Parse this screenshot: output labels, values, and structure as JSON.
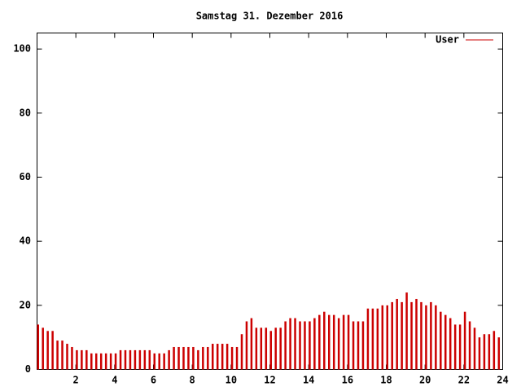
{
  "chart_data": {
    "type": "impulse",
    "title": "Samstag 31. Dezember 2016",
    "series": [
      {
        "name": "User",
        "color": "#cc0000",
        "values": [
          14,
          13,
          12,
          12,
          9,
          9,
          8,
          7,
          6,
          6,
          6,
          5,
          5,
          5,
          5,
          5,
          5,
          6,
          6,
          6,
          6,
          6,
          6,
          6,
          5,
          5,
          5,
          6,
          7,
          7,
          7,
          7,
          7,
          6,
          7,
          7,
          8,
          8,
          8,
          8,
          7,
          7,
          11,
          15,
          16,
          13,
          13,
          13,
          12,
          13,
          13,
          15,
          16,
          16,
          15,
          15,
          15,
          16,
          17,
          18,
          17,
          17,
          16,
          17,
          17,
          15,
          15,
          15,
          19,
          19,
          19,
          20,
          20,
          21,
          22,
          21,
          24,
          21,
          22,
          21,
          20,
          21,
          20,
          18,
          17,
          16,
          14,
          14,
          18,
          15,
          13,
          10,
          11,
          11,
          12,
          10
        ]
      }
    ],
    "x": [
      0,
      0.25,
      0.5,
      0.75,
      1,
      1.25,
      1.5,
      1.75,
      2,
      2.25,
      2.5,
      2.75,
      3,
      3.25,
      3.5,
      3.75,
      4,
      4.25,
      4.5,
      4.75,
      5,
      5.25,
      5.5,
      5.75,
      6,
      6.25,
      6.5,
      6.75,
      7,
      7.25,
      7.5,
      7.75,
      8,
      8.25,
      8.5,
      8.75,
      9,
      9.25,
      9.5,
      9.75,
      10,
      10.25,
      10.5,
      10.75,
      11,
      11.25,
      11.5,
      11.75,
      12,
      12.25,
      12.5,
      12.75,
      13,
      13.25,
      13.5,
      13.75,
      14,
      14.25,
      14.5,
      14.75,
      15,
      15.25,
      15.5,
      15.75,
      16,
      16.25,
      16.5,
      16.75,
      17,
      17.25,
      17.5,
      17.75,
      18,
      18.25,
      18.5,
      18.75,
      19,
      19.25,
      19.5,
      19.75,
      20,
      20.25,
      20.5,
      20.75,
      21,
      21.25,
      21.5,
      21.75,
      22,
      22.25,
      22.5,
      22.75,
      23,
      23.25,
      23.5,
      23.75
    ],
    "xlim": [
      0,
      24
    ],
    "xticks": [
      2,
      4,
      6,
      8,
      10,
      12,
      14,
      16,
      18,
      20,
      22,
      24
    ],
    "ylim": [
      0,
      105
    ],
    "yticks": [
      0,
      20,
      40,
      60,
      80,
      100
    ],
    "legend": "upper right"
  }
}
